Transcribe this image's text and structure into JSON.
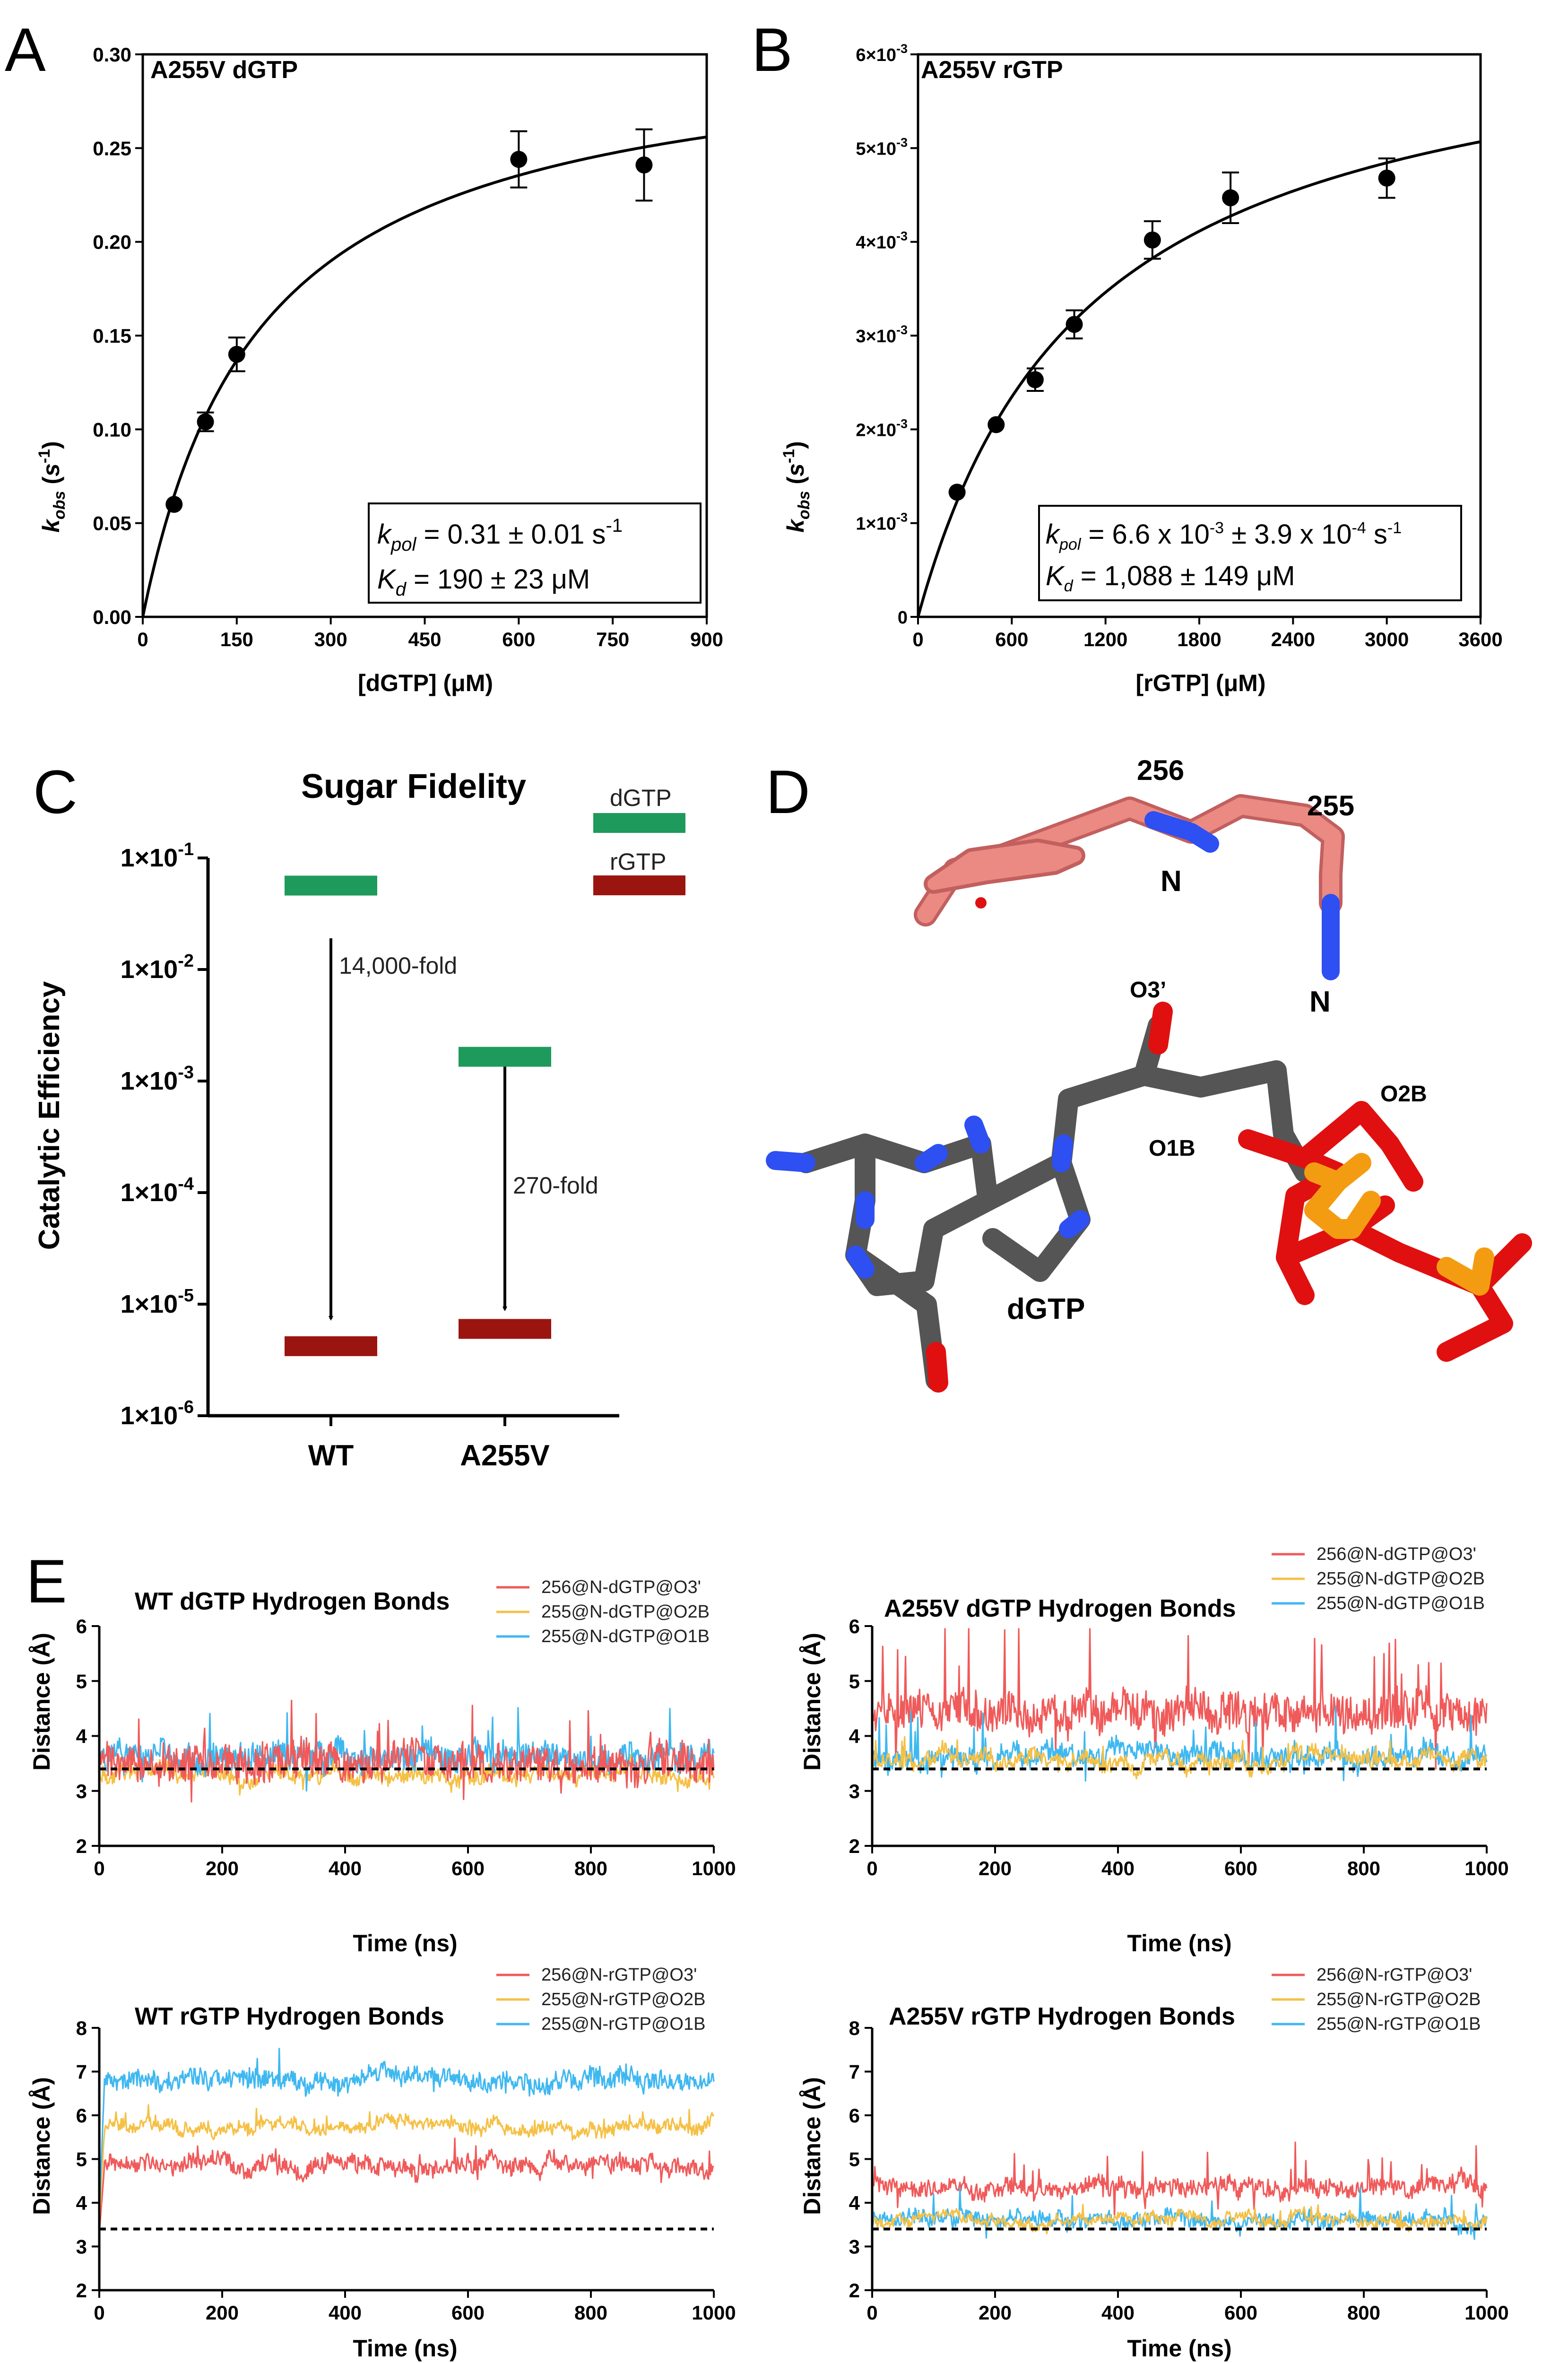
{
  "panels": {
    "A": {
      "label": "A"
    },
    "B": {
      "label": "B"
    },
    "C": {
      "label": "C"
    },
    "D": {
      "label": "D"
    },
    "E": {
      "label": "E"
    }
  },
  "chart_data": [
    {
      "id": "A",
      "type": "scatter",
      "title": "A255V dGTP",
      "xlabel": "[dGTP] (μM)",
      "ylabel": "k_obs (s^-1)",
      "xlim": [
        0,
        900
      ],
      "ylim": [
        0,
        0.3
      ],
      "xticks": [
        "0",
        "150",
        "300",
        "450",
        "600",
        "750",
        "900"
      ],
      "yticks": [
        "0.00",
        "0.05",
        "0.10",
        "0.15",
        "0.20",
        "0.25",
        "0.30"
      ],
      "points": [
        {
          "x": 50,
          "y": 0.06,
          "err": 0.0
        },
        {
          "x": 100,
          "y": 0.104,
          "err": 0.005
        },
        {
          "x": 150,
          "y": 0.14,
          "err": 0.009
        },
        {
          "x": 600,
          "y": 0.244,
          "err": 0.015
        },
        {
          "x": 800,
          "y": 0.241,
          "err": 0.019
        }
      ],
      "fit": {
        "model": "hyperbola",
        "kpol": 0.31,
        "Kd": 190
      },
      "annotation_line1": {
        "pre": "k",
        "sub": "pol",
        "post": " = 0.31 ± 0.01 s",
        "sup": "-1"
      },
      "annotation_line2": {
        "pre": "K",
        "sub": "d",
        "post": " = 190 ± 23 μM"
      }
    },
    {
      "id": "B",
      "type": "scatter",
      "title": "A255V rGTP",
      "xlabel": "[rGTP] (μM)",
      "ylabel": "k_obs (s^-1)",
      "xlim": [
        0,
        3600
      ],
      "ylim": [
        0,
        0.006
      ],
      "xticks": [
        "0",
        "600",
        "1200",
        "1800",
        "2400",
        "3000",
        "3600"
      ],
      "yticks": [
        {
          "m": "0",
          "e": ""
        },
        {
          "m": "1×10",
          "e": "-3"
        },
        {
          "m": "2×10",
          "e": "-3"
        },
        {
          "m": "3×10",
          "e": "-3"
        },
        {
          "m": "4×10",
          "e": "-3"
        },
        {
          "m": "5×10",
          "e": "-3"
        },
        {
          "m": "6×10",
          "e": "-3"
        }
      ],
      "points": [
        {
          "x": 250,
          "y": 0.00133,
          "err": 0.0
        },
        {
          "x": 500,
          "y": 0.00205,
          "err": 0.0
        },
        {
          "x": 750,
          "y": 0.00253,
          "err": 0.00012
        },
        {
          "x": 1000,
          "y": 0.00312,
          "err": 0.00015
        },
        {
          "x": 1500,
          "y": 0.00402,
          "err": 0.0002
        },
        {
          "x": 2000,
          "y": 0.00447,
          "err": 0.00027
        },
        {
          "x": 3000,
          "y": 0.00468,
          "err": 0.00021
        }
      ],
      "fit": {
        "model": "hyperbola",
        "kpol": 0.0066,
        "Kd": 1088
      },
      "annotation_line1": {
        "pre": "k",
        "sub": "pol",
        "post": " = 6.6 x 10",
        "sup": "-3",
        "post2": " ± 3.9 x 10",
        "sup2": "-4",
        "post3": " s",
        "sup3": "-1"
      },
      "annotation_line2": {
        "pre": "K",
        "sub": "d",
        "post": " = 1,088 ± 149 μM"
      }
    },
    {
      "id": "C",
      "type": "bar",
      "title": "Sugar Fidelity",
      "ylabel": "Catalytic Efficiency",
      "yscale": "log",
      "ylim": [
        1e-06,
        0.1
      ],
      "yticks": [
        {
          "m": "1×10",
          "e": "-1"
        },
        {
          "m": "1×10",
          "e": "-2"
        },
        {
          "m": "1×10",
          "e": "-3"
        },
        {
          "m": "1×10",
          "e": "-4"
        },
        {
          "m": "1×10",
          "e": "-5"
        },
        {
          "m": "1×10",
          "e": "-6"
        }
      ],
      "categories": [
        "WT",
        "A255V"
      ],
      "series": [
        {
          "name": "dGTP",
          "color": "#1e9a5c",
          "values": [
            0.0565,
            0.00165
          ]
        },
        {
          "name": "rGTP",
          "color": "#9b1510",
          "values": [
            4.2e-06,
            6e-06
          ]
        }
      ],
      "annotations": [
        "14,000-fold",
        "270-fold"
      ]
    },
    {
      "id": "E1",
      "type": "line",
      "title": "WT dGTP Hydrogen Bonds",
      "xlabel": "Time (ns)",
      "ylabel": "Distance (Å)",
      "xlim": [
        0,
        1000
      ],
      "ylim": [
        2,
        6
      ],
      "xticks": [
        "0",
        "200",
        "400",
        "600",
        "800",
        "1000"
      ],
      "yticks": [
        "2",
        "3",
        "4",
        "5",
        "6"
      ],
      "reference_line": 3.4,
      "series": [
        {
          "name": "256@N-dGTP@O3'",
          "color": "#f05a5a",
          "mean": 3.5,
          "noise": 0.32,
          "spikes": 0.9,
          "front": true
        },
        {
          "name": "255@N-dGTP@O2B",
          "color": "#f5c046",
          "mean": 3.3,
          "noise": 0.13,
          "spikes": 0.25
        },
        {
          "name": "255@N-dGTP@O1B",
          "color": "#3fb8f0",
          "mean": 3.62,
          "noise": 0.22,
          "spikes": 0.6
        }
      ]
    },
    {
      "id": "E2",
      "type": "line",
      "title": "A255V dGTP Hydrogen Bonds",
      "xlabel": "Time (ns)",
      "ylabel": "Distance (Å)",
      "xlim": [
        0,
        1000
      ],
      "ylim": [
        2,
        6
      ],
      "xticks": [
        "0",
        "200",
        "400",
        "600",
        "800",
        "1000"
      ],
      "yticks": [
        "2",
        "3",
        "4",
        "5",
        "6"
      ],
      "reference_line": 3.4,
      "series": [
        {
          "name": "256@N-dGTP@O3'",
          "color": "#f05a5a",
          "mean": 4.45,
          "noise": 0.33,
          "spikes": 1.2
        },
        {
          "name": "255@N-dGTP@O2B",
          "color": "#f5c046",
          "mean": 3.55,
          "noise": 0.12,
          "spikes": 0.3,
          "front": true
        },
        {
          "name": "255@N-dGTP@O1B",
          "color": "#3fb8f0",
          "mean": 3.62,
          "noise": 0.18,
          "spikes": 0.6
        }
      ]
    },
    {
      "id": "E3",
      "type": "line",
      "title": "WT rGTP Hydrogen Bonds",
      "xlabel": "Time (ns)",
      "ylabel": "Distance (Å)",
      "xlim": [
        0,
        1000
      ],
      "ylim": [
        2,
        8
      ],
      "xticks": [
        "0",
        "200",
        "400",
        "600",
        "800",
        "1000"
      ],
      "yticks": [
        "2",
        "3",
        "4",
        "5",
        "6",
        "7",
        "8"
      ],
      "reference_line": 3.4,
      "series": [
        {
          "name": "256@N-rGTP@O3'",
          "color": "#f05a5a",
          "mean": 4.85,
          "noise": 0.18,
          "spikes": 0.4,
          "start": 3.3
        },
        {
          "name": "255@N-rGTP@O2B",
          "color": "#f5c046",
          "mean": 5.75,
          "noise": 0.13,
          "spikes": 0.3,
          "start": 3.5
        },
        {
          "name": "255@N-rGTP@O1B",
          "color": "#3fb8f0",
          "mean": 6.8,
          "noise": 0.2,
          "spikes": 0.5,
          "start": 3.8
        }
      ]
    },
    {
      "id": "E4",
      "type": "line",
      "title": "A255V rGTP Hydrogen Bonds",
      "xlabel": "Time (ns)",
      "ylabel": "Distance (Å)",
      "xlim": [
        0,
        1000
      ],
      "ylim": [
        2,
        8
      ],
      "xticks": [
        "0",
        "200",
        "400",
        "600",
        "800",
        "1000"
      ],
      "yticks": [
        "2",
        "3",
        "4",
        "5",
        "6",
        "7",
        "8"
      ],
      "reference_line": 3.4,
      "series": [
        {
          "name": "256@N-rGTP@O3'",
          "color": "#f05a5a",
          "mean": 4.35,
          "noise": 0.18,
          "spikes": 0.8
        },
        {
          "name": "255@N-rGTP@O2B",
          "color": "#f5c046",
          "mean": 3.62,
          "noise": 0.1,
          "spikes": 0.2,
          "front": true
        },
        {
          "name": "255@N-rGTP@O1B",
          "color": "#3fb8f0",
          "mean": 3.6,
          "noise": 0.15,
          "spikes": 0.5
        }
      ]
    }
  ],
  "structure": {
    "labels": {
      "res256": "256",
      "res255": "255",
      "n1": "N",
      "n2": "N",
      "o3": "O3’",
      "o2b": "O2B",
      "o1b": "O1B",
      "dgtp": "dGTP"
    }
  }
}
